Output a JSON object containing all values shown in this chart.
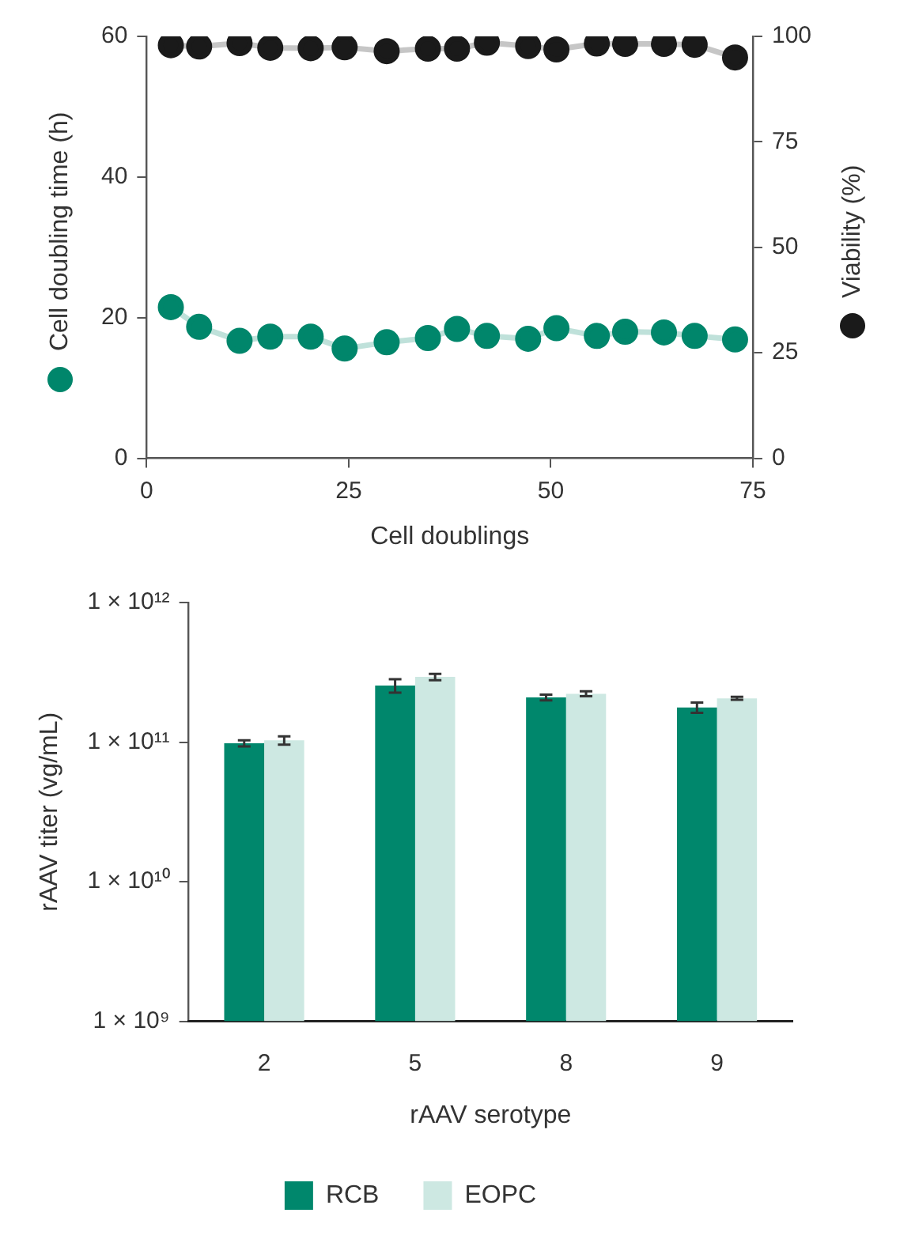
{
  "chart_data": [
    {
      "type": "line",
      "xlabel": "Cell doublings",
      "ylabel": "Cell doubling time (h)",
      "y2label": "Viability (%)",
      "x": [
        3,
        6.5,
        11.5,
        15.3,
        20.3,
        24.5,
        29.7,
        34.8,
        38.4,
        42.1,
        47.2,
        50.7,
        55.7,
        59.2,
        64,
        67.8,
        72.8
      ],
      "series": [
        {
          "color": "#00866b",
          "values": [
            21.5,
            18.7,
            16.7,
            17.3,
            17.3,
            15.6,
            16.5,
            17.1,
            18.4,
            17.4,
            17.0,
            18.5,
            17.4,
            18.0,
            17.9,
            17.4,
            16.9
          ]
        },
        {
          "color": "#1a1a1a",
          "axis": "y2",
          "values": [
            97.9,
            97.6,
            98.4,
            97.3,
            97.2,
            97.4,
            96.5,
            97.1,
            97.1,
            98.5,
            97.7,
            96.9,
            98.3,
            98.2,
            98.2,
            98.0,
            95.0
          ]
        }
      ],
      "xlim": [
        0,
        75
      ],
      "xticks": [
        0,
        25,
        50,
        75
      ],
      "ylim": [
        0,
        60
      ],
      "yticks": [
        0,
        20,
        40,
        60
      ],
      "y2lim": [
        0,
        100
      ],
      "y2ticks": [
        0,
        25,
        50,
        75,
        100
      ],
      "grid": false,
      "legend": false,
      "marker": "circle",
      "line_style": "solid"
    },
    {
      "type": "bar",
      "xlabel": "rAAV serotype",
      "ylabel": "rAAV titer (vg/mL)",
      "categories": [
        "2",
        "5",
        "8",
        "9"
      ],
      "series": [
        {
          "name": "RCB",
          "color": "#00876c",
          "values": [
            98000000000,
            254000000000,
            209000000000,
            177000000000
          ],
          "errors": [
            5000000000,
            28000000000,
            10000000000,
            15000000000
          ]
        },
        {
          "name": "EOPC",
          "color": "#cde8e2",
          "values": [
            103000000000,
            293000000000,
            222000000000,
            206000000000
          ],
          "errors": [
            7000000000,
            15000000000,
            9000000000,
            5000000000
          ]
        }
      ],
      "log": "y",
      "ylim": [
        1000000000,
        1000000000000
      ],
      "yticks": [
        {
          "value": 1000000000,
          "label": "1 × 10⁹"
        },
        {
          "value": 10000000000,
          "label": "1 × 10¹⁰"
        },
        {
          "value": 100000000000,
          "label": "1 × 10¹¹"
        },
        {
          "value": 1000000000000,
          "label": "1 × 10¹²"
        }
      ],
      "grid": false,
      "legend": "bottom"
    }
  ]
}
